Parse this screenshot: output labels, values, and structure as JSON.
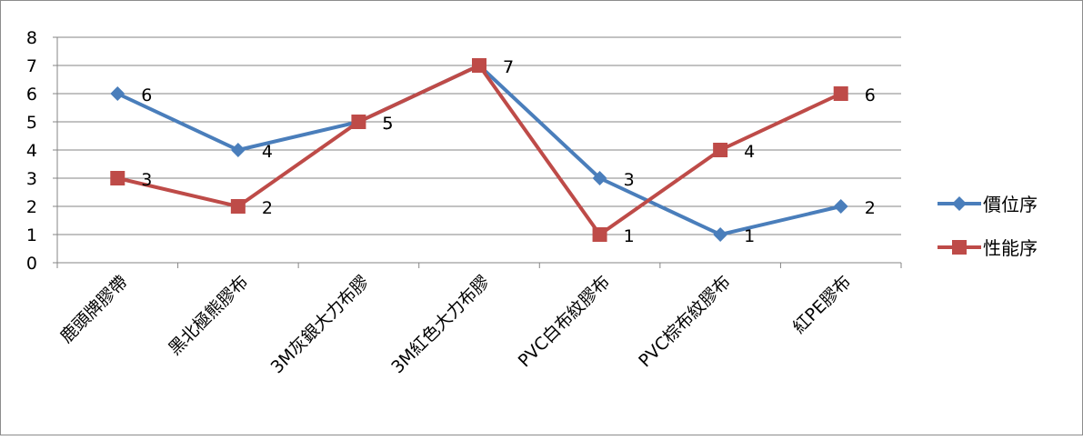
{
  "chart_data": {
    "type": "line",
    "title": "",
    "xlabel": "",
    "ylabel": "",
    "categories": [
      "鹿頭牌膠帶",
      "黑北極熊膠布",
      "3M灰銀大力布膠",
      "3M紅色大力布膠",
      "PVC白布紋膠布",
      "PVC棕布紋膠布",
      "紅PE膠布"
    ],
    "series": [
      {
        "name": "價位序",
        "values": [
          6,
          4,
          5,
          7,
          3,
          1,
          2
        ],
        "color": "#4a7ebb",
        "marker": "diamond"
      },
      {
        "name": "性能序",
        "values": [
          3,
          2,
          5,
          7,
          1,
          4,
          6
        ],
        "color": "#be4b48",
        "marker": "square"
      }
    ],
    "ylim": [
      0,
      8
    ],
    "yticks": [
      0,
      1,
      2,
      3,
      4,
      5,
      6,
      7,
      8
    ],
    "grid": true,
    "legend_position": "right",
    "data_labels": true
  }
}
